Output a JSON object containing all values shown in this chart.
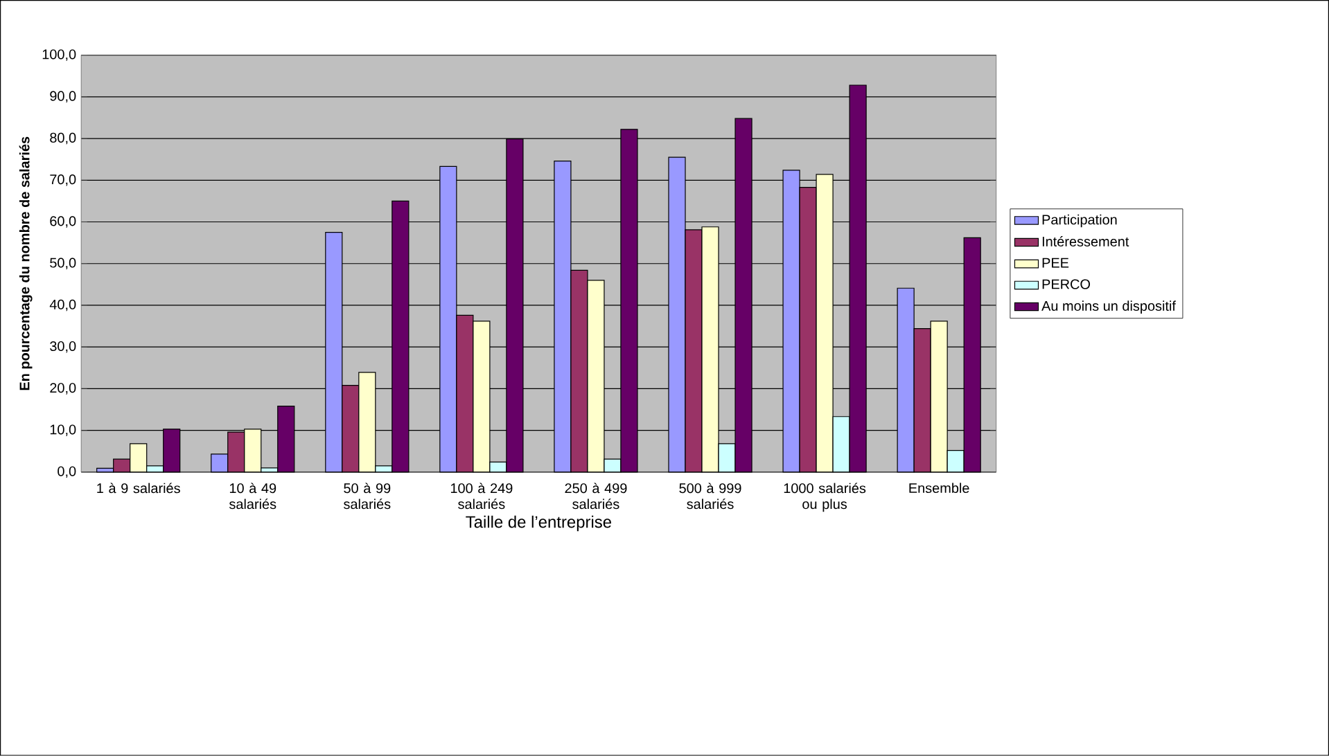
{
  "chart_data": {
    "type": "bar",
    "xlabel": "Taille de l’entreprise",
    "ylabel": "En pourcentage du nombre de salariés",
    "categories": [
      "1 à 9 salariés",
      "10 à 49 salariés",
      "50 à 99 salariés",
      "100 à 249 salariés",
      "250 à 499 salariés",
      "500 à 999 salariés",
      "1000 salariés ou plus",
      "Ensemble"
    ],
    "series": [
      {
        "name": "Participation",
        "color": "#9999ff",
        "values": [
          0.9,
          4.3,
          57.5,
          73.3,
          74.6,
          75.5,
          72.4,
          44.1
        ]
      },
      {
        "name": "Intéressement",
        "color": "#993366",
        "values": [
          3.1,
          9.6,
          20.8,
          37.6,
          48.4,
          58.1,
          68.3,
          34.4
        ]
      },
      {
        "name": "PEE",
        "color": "#ffffcc",
        "values": [
          6.8,
          10.3,
          23.9,
          36.2,
          46.0,
          58.8,
          71.4,
          36.2
        ]
      },
      {
        "name": "PERCO",
        "color": "#ccffff",
        "values": [
          1.5,
          1.0,
          1.5,
          2.4,
          3.1,
          6.8,
          13.3,
          5.2
        ]
      },
      {
        "name": "Au moins un dispositif",
        "color": "#660066",
        "values": [
          10.3,
          15.8,
          65.0,
          79.9,
          82.2,
          84.8,
          92.8,
          56.2
        ]
      }
    ],
    "ylim": [
      0,
      100
    ],
    "yticks": [
      {
        "value": 0,
        "label": "0,0"
      },
      {
        "value": 10,
        "label": "10,0"
      },
      {
        "value": 20,
        "label": "20,0"
      },
      {
        "value": 30,
        "label": "30,0"
      },
      {
        "value": 40,
        "label": "40,0"
      },
      {
        "value": 50,
        "label": "50,0"
      },
      {
        "value": 60,
        "label": "60,0"
      },
      {
        "value": 70,
        "label": "70,0"
      },
      {
        "value": 80,
        "label": "80,0"
      },
      {
        "value": 90,
        "label": "90,0"
      },
      {
        "value": 100,
        "label": "100,0"
      }
    ],
    "grid": "y",
    "legend": "right"
  }
}
